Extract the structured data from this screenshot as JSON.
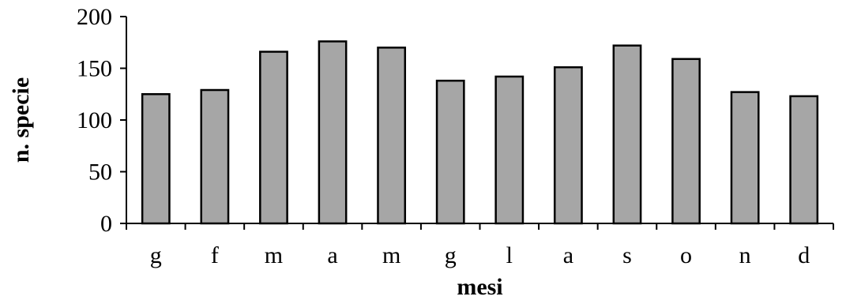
{
  "chart_data": {
    "type": "bar",
    "categories": [
      "g",
      "f",
      "m",
      "a",
      "m",
      "g",
      "l",
      "a",
      "s",
      "o",
      "n",
      "d"
    ],
    "values": [
      125,
      129,
      166,
      176,
      170,
      138,
      142,
      151,
      172,
      159,
      127,
      123
    ],
    "xlabel": "mesi",
    "ylabel": "n. specie",
    "ylim": [
      0,
      200
    ],
    "yticks": [
      0,
      50,
      100,
      150,
      200
    ],
    "grid": false,
    "legend": "none",
    "colors": {
      "bar_fill": "#a6a6a6",
      "bar_stroke": "#000000"
    }
  }
}
